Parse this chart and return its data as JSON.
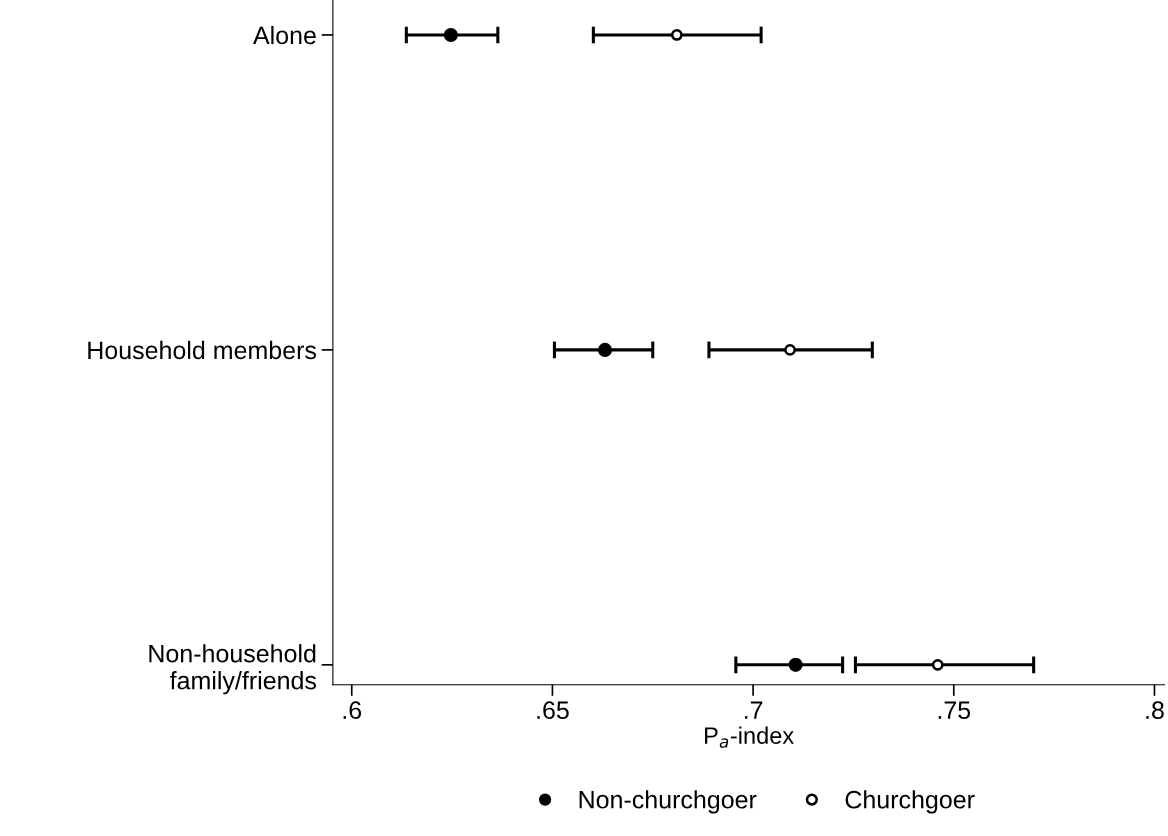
{
  "chart_data": {
    "type": "scatter",
    "orientation": "horizontal",
    "xlabel": "P$_{a}$-index",
    "categories": [
      "Alone",
      "Household members",
      "Non-household\nfamily/friends"
    ],
    "series": [
      {
        "name": "Non-churchgoer",
        "color": "#000000",
        "values": [
          0.6247,
          0.6631,
          0.7106
        ],
        "errors": [
          [
            0.6136,
            0.6364
          ],
          [
            0.6505,
            0.675
          ],
          [
            0.6957,
            0.7223
          ]
        ]
      },
      {
        "name": "Churchgoer",
        "color": "#000000",
        "values": [
          0.681,
          0.7092,
          0.746
        ],
        "errors": [
          [
            0.6602,
            0.702
          ],
          [
            0.689,
            0.7297
          ],
          [
            0.7255,
            0.7699
          ]
        ]
      }
    ],
    "xlim": [
      0.5953,
      0.8025
    ],
    "xticks": [
      {
        "value": 0.6,
        "label": ".6"
      },
      {
        "value": 0.65,
        "label": ".65"
      },
      {
        "value": 0.7,
        "label": ".7"
      },
      {
        "value": 0.75,
        "label": ".75"
      },
      {
        "value": 0.8,
        "label": ".8"
      }
    ],
    "marker": "circle",
    "grid": false,
    "legend": "bottom"
  }
}
